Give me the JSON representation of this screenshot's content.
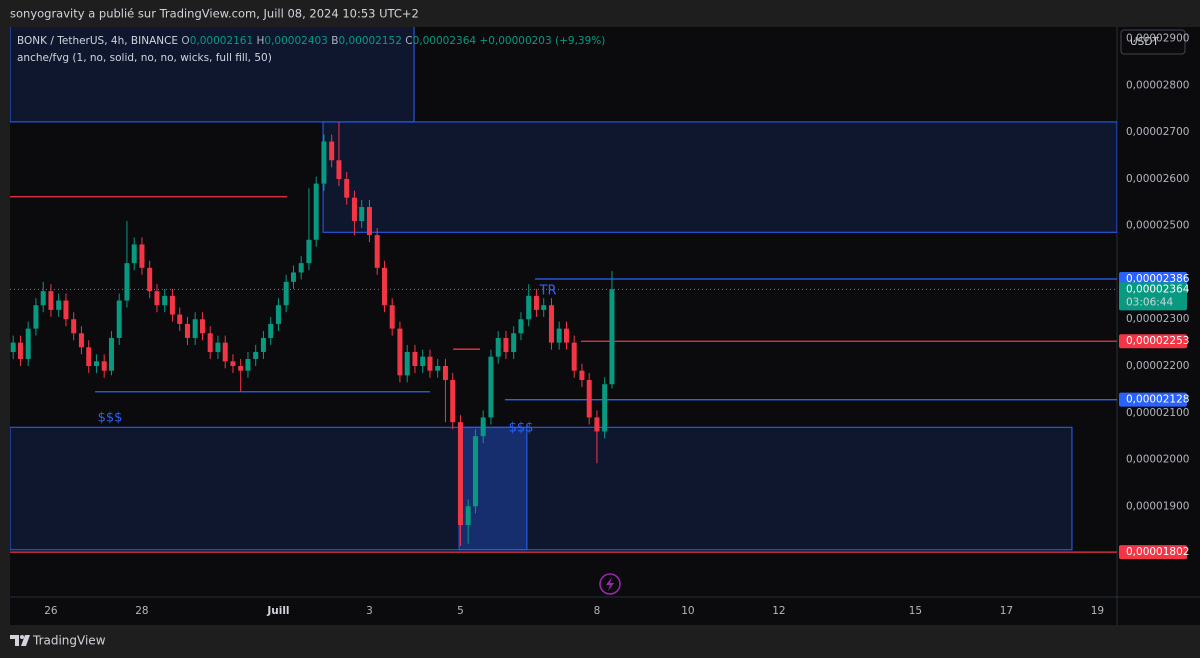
{
  "chart_data": {
    "type": "candlestick",
    "title": "sonyogravity a publié sur TradingView.com, Juill 08, 2024 10:53 UTC+2",
    "legend": {
      "symbol": "BONK / TetherUS, 4h, BINANCE",
      "o_label": "O",
      "open": "0,00002161",
      "h_label": "H",
      "high": "0,00002403",
      "l_label": "B",
      "low": "0,00002152",
      "c_label": "C",
      "close": "0,00002364",
      "change": "+0,00000203 (+9,39%)"
    },
    "indicator": "anche/fvg (1, no, solid, no, no, wicks, full fill, 50)",
    "currency": "USDT",
    "brand": "TradingView",
    "up_color": "#089981",
    "down_color": "#f23645",
    "x": [
      -0.83,
      -0.67,
      -0.5,
      -0.33,
      -0.17,
      0,
      0.17,
      0.33,
      0.5,
      0.67,
      0.83,
      1,
      1.17,
      1.33,
      1.5,
      1.67,
      1.83,
      2,
      2.17,
      2.33,
      2.5,
      2.67,
      2.83,
      3,
      3.17,
      3.33,
      3.5,
      3.67,
      3.83,
      4,
      4.17,
      4.33,
      4.5,
      4.67,
      4.83,
      5,
      5.17,
      5.33,
      5.5,
      5.67,
      5.83,
      6,
      6.17,
      6.33,
      6.5,
      6.67,
      6.83,
      7,
      7.17,
      7.33,
      7.5,
      7.67,
      7.83,
      8,
      8.17,
      8.33,
      8.5,
      8.67,
      8.83,
      9,
      9.17,
      9.33,
      9.5,
      9.67,
      9.83,
      10,
      10.17,
      10.33,
      10.5,
      10.67,
      10.83,
      11,
      11.17,
      11.33,
      11.5,
      11.67,
      11.83,
      12,
      12.17,
      12.33
    ],
    "open": [
      2.23e-05,
      2.25e-05,
      2.215e-05,
      2.28e-05,
      2.33e-05,
      2.36e-05,
      2.32e-05,
      2.34e-05,
      2.3e-05,
      2.27e-05,
      2.24e-05,
      2.2e-05,
      2.21e-05,
      2.19e-05,
      2.26e-05,
      2.34e-05,
      2.42e-05,
      2.46e-05,
      2.41e-05,
      2.36e-05,
      2.33e-05,
      2.35e-05,
      2.31e-05,
      2.29e-05,
      2.26e-05,
      2.3e-05,
      2.27e-05,
      2.23e-05,
      2.25e-05,
      2.21e-05,
      2.2e-05,
      2.19e-05,
      2.215e-05,
      2.23e-05,
      2.26e-05,
      2.29e-05,
      2.33e-05,
      2.38e-05,
      2.4e-05,
      2.42e-05,
      2.47e-05,
      2.59e-05,
      2.68e-05,
      2.64e-05,
      2.6e-05,
      2.56e-05,
      2.51e-05,
      2.54e-05,
      2.48e-05,
      2.41e-05,
      2.33e-05,
      2.28e-05,
      2.18e-05,
      2.23e-05,
      2.2e-05,
      2.22e-05,
      2.19e-05,
      2.2e-05,
      2.17e-05,
      2.08e-05,
      1.86e-05,
      1.9e-05,
      2.05e-05,
      2.09e-05,
      2.22e-05,
      2.26e-05,
      2.23e-05,
      2.27e-05,
      2.3e-05,
      2.35e-05,
      2.32e-05,
      2.33e-05,
      2.25e-05,
      2.28e-05,
      2.25e-05,
      2.19e-05,
      2.17e-05,
      2.09e-05,
      2.06e-05,
      2.161e-05
    ],
    "high": [
      2.265e-05,
      2.265e-05,
      2.295e-05,
      2.345e-05,
      2.38e-05,
      2.375e-05,
      2.355e-05,
      2.355e-05,
      2.315e-05,
      2.285e-05,
      2.255e-05,
      2.225e-05,
      2.225e-05,
      2.275e-05,
      2.355e-05,
      2.51e-05,
      2.475e-05,
      2.475e-05,
      2.425e-05,
      2.375e-05,
      2.365e-05,
      2.365e-05,
      2.325e-05,
      2.305e-05,
      2.315e-05,
      2.315e-05,
      2.285e-05,
      2.265e-05,
      2.265e-05,
      2.225e-05,
      2.215e-05,
      2.23e-05,
      2.245e-05,
      2.275e-05,
      2.305e-05,
      2.345e-05,
      2.395e-05,
      2.415e-05,
      2.435e-05,
      2.58e-05,
      2.605e-05,
      2.695e-05,
      2.695e-05,
      2.722e-05,
      2.615e-05,
      2.575e-05,
      2.555e-05,
      2.555e-05,
      2.495e-05,
      2.425e-05,
      2.345e-05,
      2.295e-05,
      2.245e-05,
      2.245e-05,
      2.235e-05,
      2.235e-05,
      2.215e-05,
      2.215e-05,
      2.185e-05,
      2.095e-05,
      1.915e-05,
      2.065e-05,
      2.105e-05,
      2.235e-05,
      2.275e-05,
      2.275e-05,
      2.285e-05,
      2.315e-05,
      2.375e-05,
      2.365e-05,
      2.345e-05,
      2.345e-05,
      2.295e-05,
      2.295e-05,
      2.265e-05,
      2.205e-05,
      2.185e-05,
      2.105e-05,
      2.176e-05,
      2.403e-05
    ],
    "low": [
      2.215e-05,
      2.2e-05,
      2.2e-05,
      2.265e-05,
      2.315e-05,
      2.305e-05,
      2.305e-05,
      2.285e-05,
      2.255e-05,
      2.225e-05,
      2.185e-05,
      2.185e-05,
      2.175e-05,
      2.18e-05,
      2.245e-05,
      2.325e-05,
      2.405e-05,
      2.395e-05,
      2.345e-05,
      2.315e-05,
      2.315e-05,
      2.295e-05,
      2.275e-05,
      2.245e-05,
      2.245e-05,
      2.255e-05,
      2.215e-05,
      2.215e-05,
      2.195e-05,
      2.185e-05,
      2.145e-05,
      2.175e-05,
      2.2e-05,
      2.215e-05,
      2.245e-05,
      2.275e-05,
      2.315e-05,
      2.365e-05,
      2.385e-05,
      2.405e-05,
      2.455e-05,
      2.575e-05,
      2.625e-05,
      2.585e-05,
      2.545e-05,
      2.48e-05,
      2.495e-05,
      2.465e-05,
      2.395e-05,
      2.315e-05,
      2.265e-05,
      2.165e-05,
      2.165e-05,
      2.185e-05,
      2.185e-05,
      2.175e-05,
      2.175e-05,
      2.08e-05,
      2.065e-05,
      1.815e-05,
      1.82e-05,
      1.885e-05,
      2.035e-05,
      2.075e-05,
      2.205e-05,
      2.215e-05,
      2.215e-05,
      2.255e-05,
      2.285e-05,
      2.305e-05,
      2.305e-05,
      2.235e-05,
      2.235e-05,
      2.235e-05,
      2.175e-05,
      2.155e-05,
      2.075e-05,
      1.992e-05,
      2.045e-05,
      2.152e-05
    ],
    "close": [
      2.25e-05,
      2.215e-05,
      2.28e-05,
      2.33e-05,
      2.36e-05,
      2.32e-05,
      2.34e-05,
      2.3e-05,
      2.27e-05,
      2.24e-05,
      2.2e-05,
      2.21e-05,
      2.19e-05,
      2.26e-05,
      2.34e-05,
      2.42e-05,
      2.46e-05,
      2.41e-05,
      2.36e-05,
      2.33e-05,
      2.35e-05,
      2.31e-05,
      2.29e-05,
      2.26e-05,
      2.3e-05,
      2.27e-05,
      2.23e-05,
      2.25e-05,
      2.21e-05,
      2.2e-05,
      2.19e-05,
      2.215e-05,
      2.23e-05,
      2.26e-05,
      2.29e-05,
      2.33e-05,
      2.38e-05,
      2.4e-05,
      2.42e-05,
      2.47e-05,
      2.59e-05,
      2.68e-05,
      2.64e-05,
      2.6e-05,
      2.56e-05,
      2.51e-05,
      2.54e-05,
      2.48e-05,
      2.41e-05,
      2.33e-05,
      2.28e-05,
      2.18e-05,
      2.23e-05,
      2.2e-05,
      2.22e-05,
      2.19e-05,
      2.2e-05,
      2.17e-05,
      2.08e-05,
      1.86e-05,
      1.9e-05,
      2.05e-05,
      2.09e-05,
      2.22e-05,
      2.26e-05,
      2.23e-05,
      2.27e-05,
      2.3e-05,
      2.35e-05,
      2.32e-05,
      2.33e-05,
      2.25e-05,
      2.28e-05,
      2.25e-05,
      2.19e-05,
      2.17e-05,
      2.09e-05,
      2.06e-05,
      2.161e-05,
      2.364e-05
    ],
    "xlim": [
      -0.9,
      23.43
    ],
    "xticks": [
      {
        "value": 0,
        "label": "26"
      },
      {
        "value": 2,
        "label": "28"
      },
      {
        "value": 5,
        "label": "Juill"
      },
      {
        "value": 7,
        "label": "3"
      },
      {
        "value": 9,
        "label": "5"
      },
      {
        "value": 12,
        "label": "8"
      },
      {
        "value": 14,
        "label": "10"
      },
      {
        "value": 16,
        "label": "12"
      },
      {
        "value": 19,
        "label": "15"
      },
      {
        "value": 21,
        "label": "17"
      },
      {
        "value": 23,
        "label": "19"
      }
    ],
    "ylim": [
      1.706e-05,
      2.925e-05
    ],
    "yticks": [
      {
        "value": 1.9e-05,
        "label": "0,00001900"
      },
      {
        "value": 2e-05,
        "label": "0,00002000"
      },
      {
        "value": 2.1e-05,
        "label": "0,00002100"
      },
      {
        "value": 2.2e-05,
        "label": "0,00002200"
      },
      {
        "value": 2.3e-05,
        "label": "0,00002300"
      },
      {
        "value": 2.5e-05,
        "label": "0,00002500"
      },
      {
        "value": 2.6e-05,
        "label": "0,00002600"
      },
      {
        "value": 2.7e-05,
        "label": "0,00002700"
      },
      {
        "value": 2.8e-05,
        "label": "0,00002800"
      },
      {
        "value": 2.9e-05,
        "label": "0,00002900"
      }
    ],
    "zones": [
      {
        "x": [
          -0.9,
          7.98
        ],
        "y": [
          2.722e-05,
          3e-05
        ],
        "color": "rgba(41,98,255,0.14)"
      },
      {
        "x": [
          5.98,
          23.43
        ],
        "y": [
          2.486e-05,
          2.722e-05
        ],
        "color": "rgba(41,98,255,0.14)"
      },
      {
        "x": [
          -0.9,
          22.44
        ],
        "y": [
          1.807e-05,
          2.069e-05
        ],
        "color": "rgba(41,98,255,0.14)"
      },
      {
        "x": [
          8.97,
          10.46
        ],
        "y": [
          1.807e-05,
          2.069e-05
        ],
        "color": "rgba(41,98,255,0.3)"
      }
    ],
    "levels": [
      {
        "value": 2.562e-05,
        "x": [
          -0.9,
          5.19
        ],
        "color": "#f23645",
        "style": "solid"
      },
      {
        "value": 2.145e-05,
        "x": [
          0.97,
          8.33
        ],
        "color": "#2962ff",
        "style": "solid"
      },
      {
        "value": 2.236e-05,
        "x": [
          8.84,
          9.43
        ],
        "color": "#f23645",
        "style": "solid"
      },
      {
        "value": 2.386e-05,
        "x": [
          10.64,
          23.43
        ],
        "color": "#2962ff",
        "style": "solid"
      },
      {
        "value": 2.253e-05,
        "x": [
          11.65,
          23.43
        ],
        "color": "#f23645",
        "style": "solid"
      },
      {
        "value": 2.128e-05,
        "x": [
          9.98,
          23.43
        ],
        "color": "#2962ff",
        "style": "solid"
      },
      {
        "value": 1.802e-05,
        "x": [
          -0.9,
          23.43
        ],
        "color": "#f23645",
        "style": "solid"
      },
      {
        "value": 2.364e-05,
        "x": [
          -0.9,
          23.43
        ],
        "color": "#787b86",
        "style": "dotted"
      }
    ],
    "price_labels": [
      {
        "value": 2.386e-05,
        "label": "0,00002386",
        "color": "#2962ff"
      },
      {
        "value": 2.364e-05,
        "label": "0,00002364",
        "color": "#089981",
        "countdown": "03:06:44"
      },
      {
        "value": 2.253e-05,
        "label": "0,00002253",
        "color": "#f23645"
      },
      {
        "value": 2.128e-05,
        "label": "0,00002128",
        "color": "#2962ff"
      },
      {
        "value": 1.802e-05,
        "label": "0,00001802",
        "color": "#f23645"
      }
    ],
    "annotations": [
      "TR",
      "$$$",
      "$$$"
    ]
  }
}
